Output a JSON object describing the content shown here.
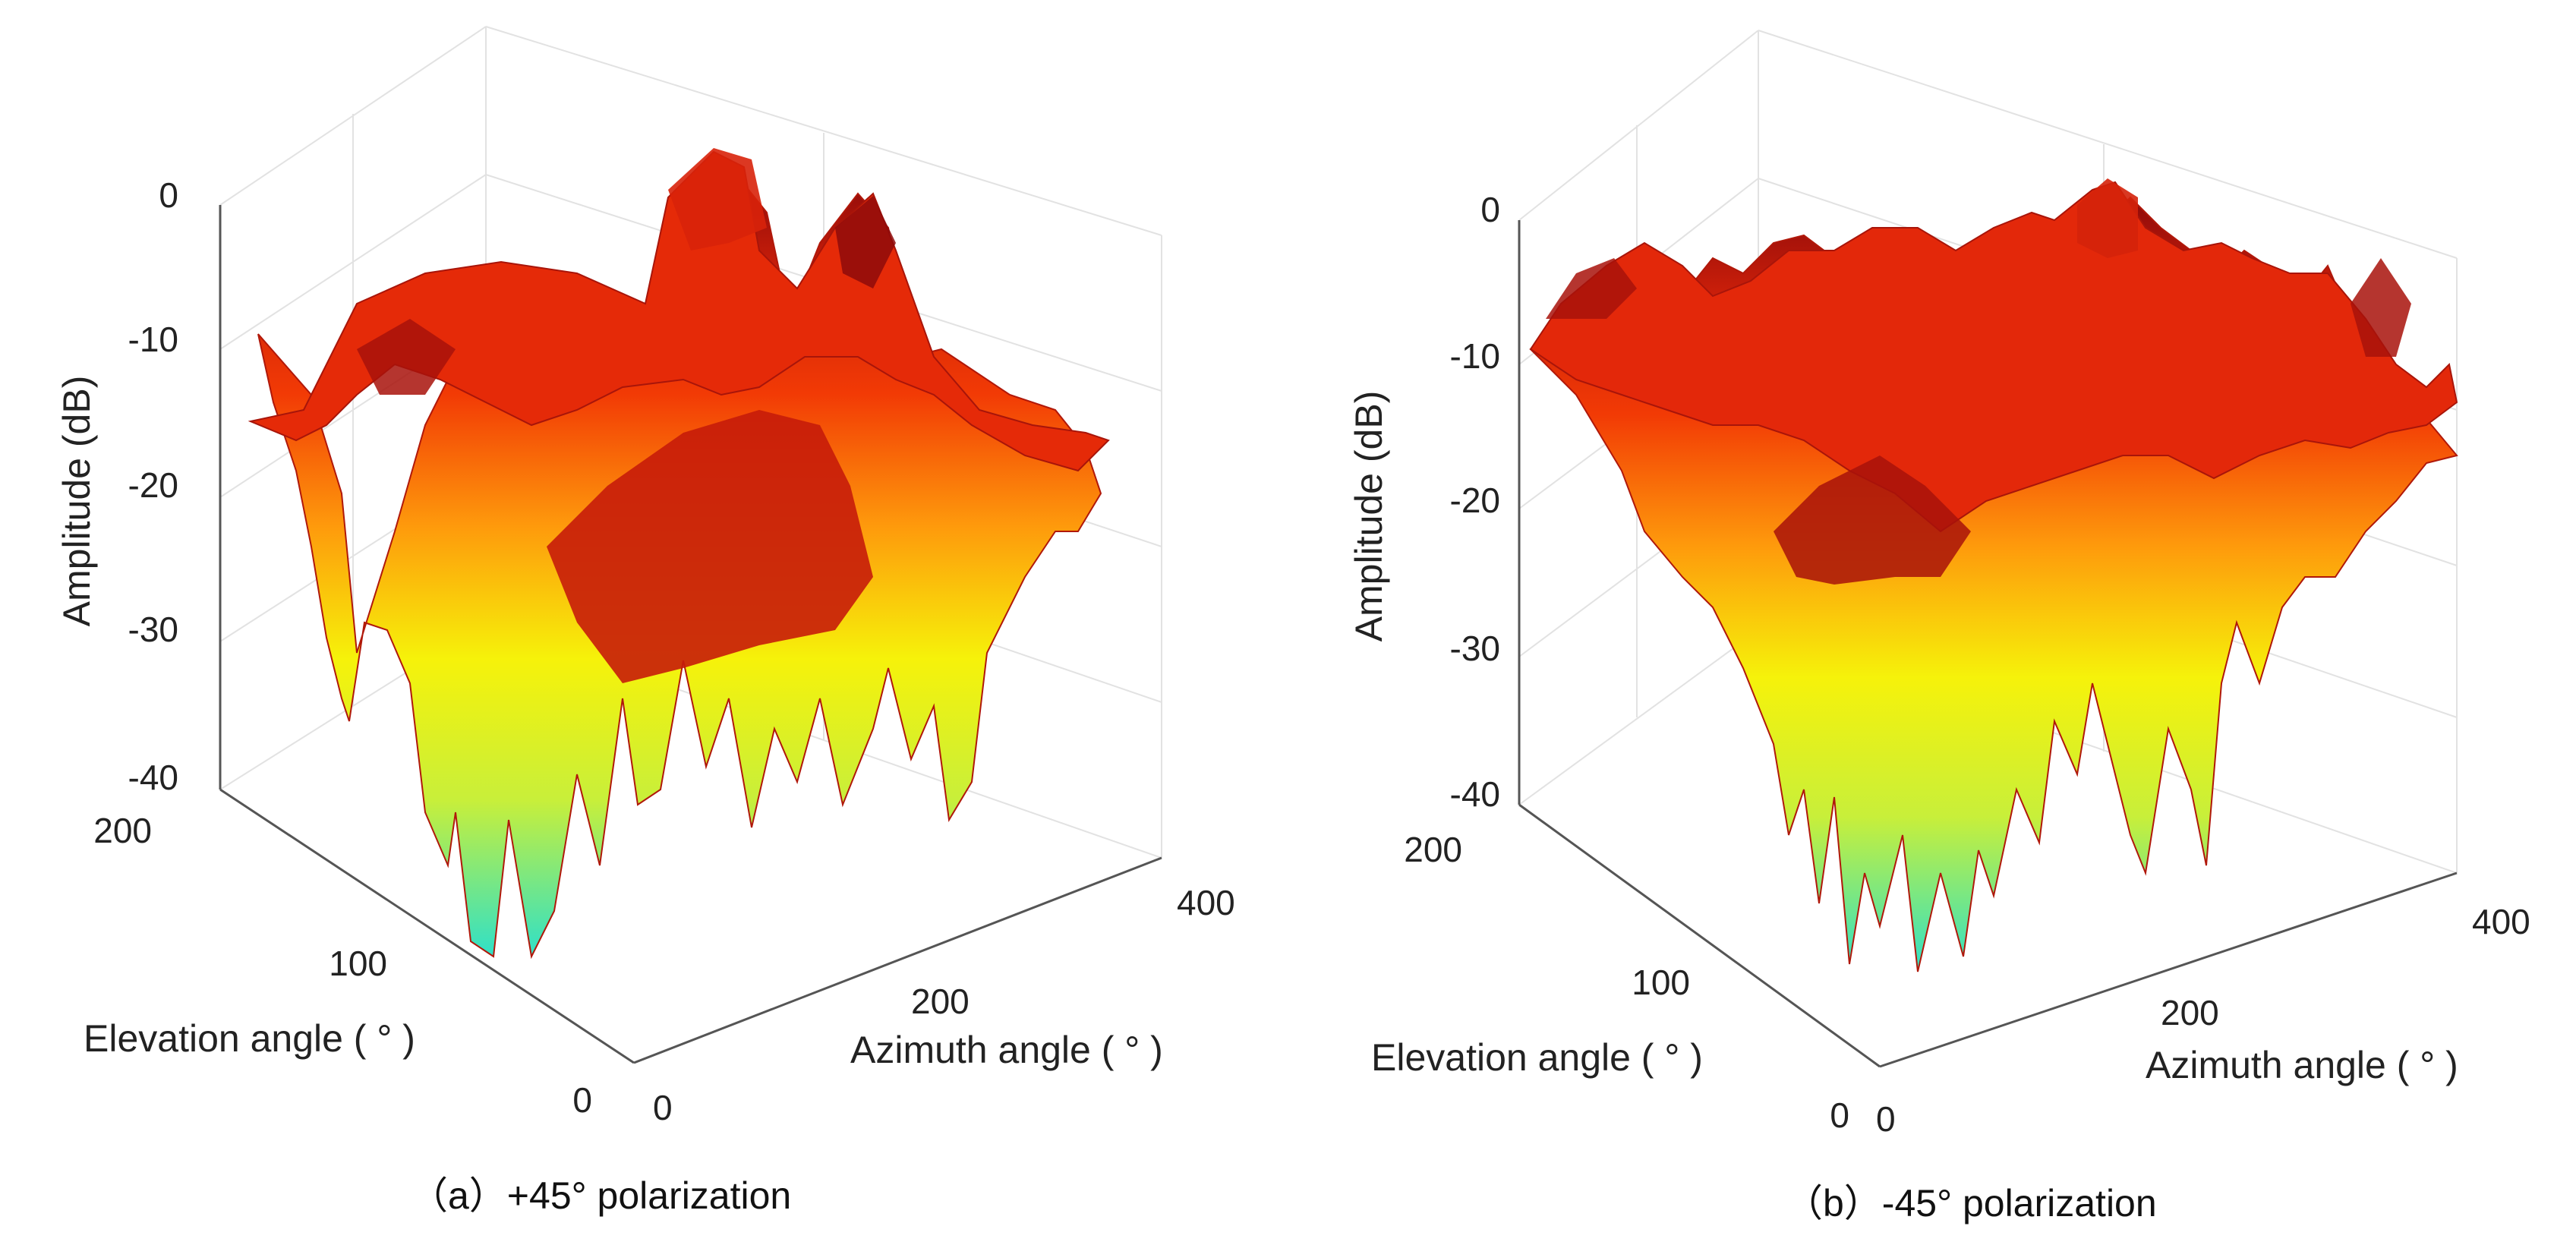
{
  "chart_data": [
    {
      "type": "surface",
      "title": "+45° polarization",
      "caption_prefix": "（a）",
      "caption": "（a）+45° polarization",
      "xlabel": "Azimuth angle (°)",
      "xlabel_text": "Azimuth angle ( ° )",
      "ylabel": "Elevation angle (°)",
      "ylabel_text": "Elevation angle ( ° )",
      "zlabel": "Amplitude (dB)",
      "xlim": [
        0,
        400
      ],
      "ylim": [
        0,
        200
      ],
      "zlim": [
        -40,
        0
      ],
      "xticks": [
        0,
        200,
        400
      ],
      "yticks": [
        0,
        100,
        200
      ],
      "zticks": [
        0,
        -10,
        -20,
        -30,
        -40
      ],
      "colormap": [
        "#2fe0c8",
        "#f6f20a",
        "#fe9a0c",
        "#f23a05",
        "#c81e0a",
        "#8e0a0a"
      ],
      "grid": true,
      "peaks": [
        {
          "azimuth": 180,
          "elevation": 150,
          "amplitude": -1
        },
        {
          "azimuth": 240,
          "elevation": 55,
          "amplitude": -9
        },
        {
          "azimuth": 330,
          "elevation": 175,
          "amplitude": -4
        },
        {
          "azimuth": 40,
          "elevation": 150,
          "amplitude": -5
        },
        {
          "azimuth": 110,
          "elevation": 95,
          "amplitude": -8
        }
      ],
      "nulls": [
        {
          "azimuth": 20,
          "elevation": 180,
          "amplitude": -35
        },
        {
          "azimuth": 150,
          "elevation": 70,
          "amplitude": -40
        },
        {
          "azimuth": 300,
          "elevation": 110,
          "amplitude": -34
        }
      ]
    },
    {
      "type": "surface",
      "title": "-45° polarization",
      "caption_prefix": "（b）",
      "caption": "（b）-45° polarization",
      "xlabel": "Azimuth angle (°)",
      "xlabel_text": "Azimuth angle ( ° )",
      "ylabel": "Elevation angle (°)",
      "ylabel_text": "Elevation angle ( ° )",
      "zlabel": "Amplitude (dB)",
      "xlim": [
        0,
        400
      ],
      "ylim": [
        0,
        200
      ],
      "zlim": [
        -40,
        0
      ],
      "xticks": [
        0,
        200,
        400
      ],
      "yticks": [
        0,
        100,
        200
      ],
      "zticks": [
        0,
        -10,
        -20,
        -30,
        -40
      ],
      "colormap": [
        "#2fe0c8",
        "#f6f20a",
        "#fe9a0c",
        "#f23a05",
        "#c81e0a",
        "#8e0a0a"
      ],
      "grid": true,
      "peaks": [
        {
          "azimuth": 60,
          "elevation": 170,
          "amplitude": -6
        },
        {
          "azimuth": 250,
          "elevation": 170,
          "amplitude": -2
        },
        {
          "azimuth": 340,
          "elevation": 150,
          "amplitude": -8
        },
        {
          "azimuth": 120,
          "elevation": 100,
          "amplitude": -13
        }
      ],
      "nulls": [
        {
          "azimuth": 180,
          "elevation": 60,
          "amplitude": -40
        },
        {
          "azimuth": 280,
          "elevation": 100,
          "amplitude": -37
        },
        {
          "azimuth": 60,
          "elevation": 120,
          "amplitude": -33
        }
      ]
    }
  ]
}
